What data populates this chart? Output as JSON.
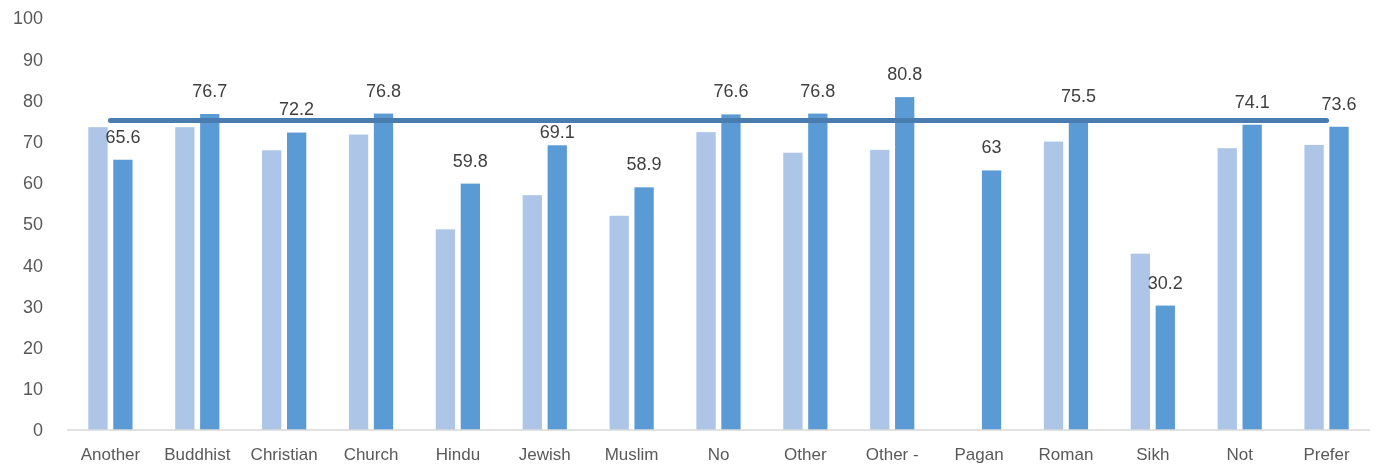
{
  "chart_data": {
    "type": "bar",
    "categories": [
      "Another",
      "Buddhist",
      "Christian",
      "Church",
      "Hindu",
      "Jewish",
      "Muslim",
      "No",
      "Other",
      "Other -",
      "Pagan",
      "Roman",
      "Sikh",
      "Not",
      "Prefer"
    ],
    "series": [
      {
        "color": "#adc5e7",
        "values": [
          73.5,
          73.5,
          67.9,
          71.7,
          48.7,
          57.0,
          52.0,
          72.3,
          67.3,
          68.0,
          null,
          70.0,
          42.8,
          68.4,
          69.2
        ]
      },
      {
        "color": "#5b9bd5",
        "values": [
          65.6,
          76.7,
          72.2,
          76.8,
          59.8,
          69.1,
          58.9,
          76.6,
          76.8,
          80.8,
          63,
          75.5,
          30.2,
          74.1,
          73.6
        ],
        "value_labels": [
          "65.6",
          "76.7",
          "72.2",
          "76.8",
          "59.8",
          "69.1",
          "58.9",
          "76.6",
          "76.8",
          "80.8",
          "63",
          "75.5",
          "30.2",
          "74.1",
          "73.6"
        ]
      },
      {
        "type": "line",
        "color": "#497db0",
        "values": [
          75.1,
          75.1,
          75.1,
          75.1,
          75.1,
          75.1,
          75.1,
          75.1,
          75.1,
          75.1,
          75.1,
          75.1,
          75.1,
          75.1,
          75.1
        ]
      }
    ],
    "ylim": [
      0,
      100
    ],
    "yticks": [
      0,
      10,
      20,
      30,
      40,
      50,
      60,
      70,
      80,
      90,
      100
    ]
  }
}
